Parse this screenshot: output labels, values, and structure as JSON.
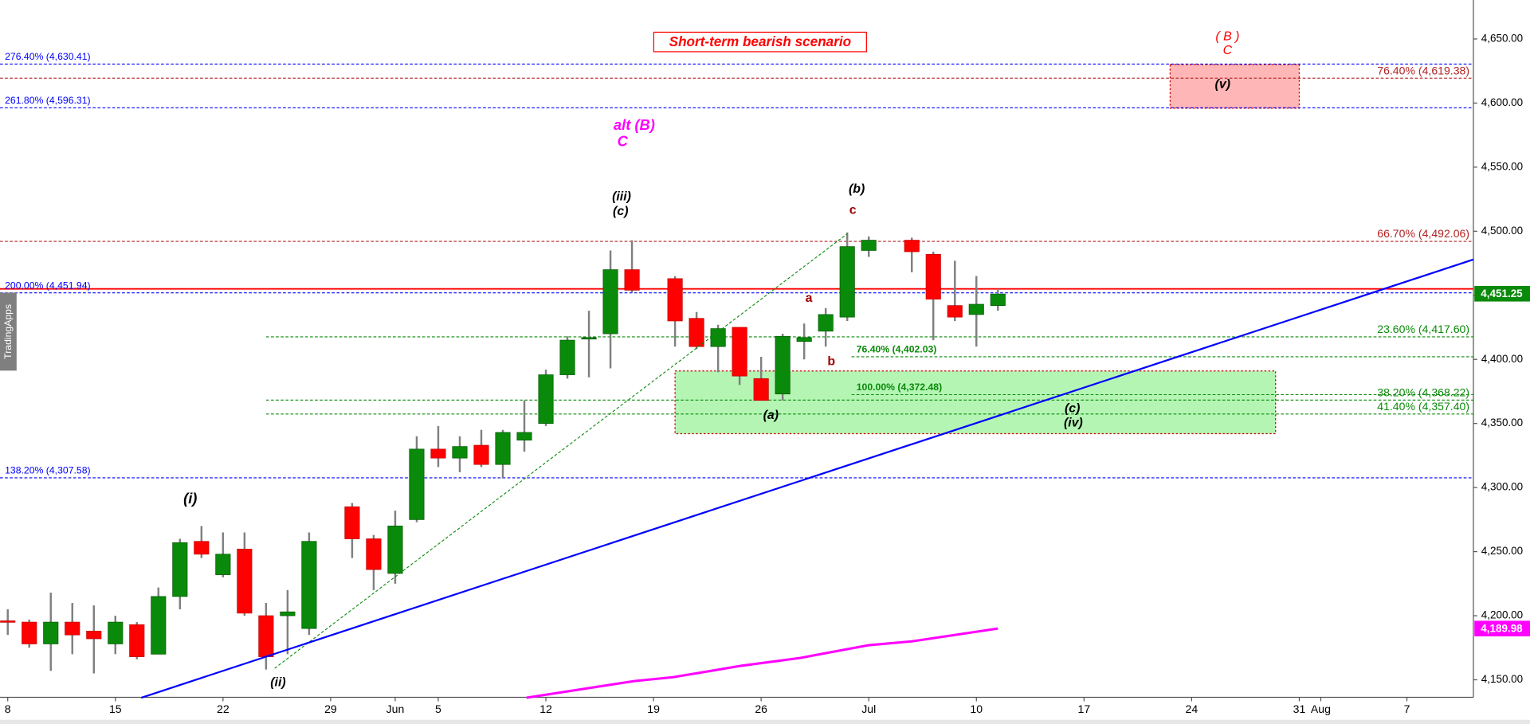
{
  "chart_data": {
    "type": "candlestick",
    "title": "Short-term bearish scenario",
    "watermark": "TradingApps",
    "up_color": "#0a8a0a",
    "down_color": "#ff0000",
    "wick_color": "#808080",
    "x": [
      0,
      1,
      2,
      3,
      4,
      5,
      6,
      7,
      8,
      9,
      10,
      11,
      12,
      13,
      14,
      16,
      17,
      18,
      19,
      20,
      21,
      22,
      23,
      24,
      25,
      26,
      27,
      28,
      29,
      31,
      32,
      33,
      34,
      35,
      36,
      37,
      38,
      39,
      40,
      42,
      43,
      44,
      45,
      46
    ],
    "open": [
      4196,
      4195,
      4178,
      4195,
      4188,
      4178,
      4193,
      4170,
      4215,
      4258,
      4232,
      4252,
      4200,
      4200,
      4190,
      4285,
      4260,
      4233,
      4275,
      4330,
      4323,
      4333,
      4318,
      4337,
      4350,
      4388,
      4416,
      4420,
      4470,
      4463,
      4432,
      4410,
      4425,
      4385,
      4373,
      4414,
      4422,
      4433,
      4485,
      4493,
      4482,
      4442,
      4435,
      4442
    ],
    "high": [
      4205,
      4197,
      4218,
      4210,
      4208,
      4200,
      4195,
      4222,
      4260,
      4270,
      4265,
      4265,
      4210,
      4220,
      4265,
      4288,
      4263,
      4282,
      4340,
      4348,
      4340,
      4345,
      4345,
      4368,
      4392,
      4418,
      4438,
      4485,
      4493,
      4465,
      4437,
      4427,
      4425,
      4402,
      4420,
      4428,
      4440,
      4499,
      4496,
      4495,
      4484,
      4477,
      4465,
      4455
    ],
    "low": [
      4185,
      4175,
      4157,
      4170,
      4155,
      4170,
      4166,
      4170,
      4205,
      4245,
      4230,
      4200,
      4158,
      4170,
      4185,
      4245,
      4220,
      4225,
      4273,
      4316,
      4312,
      4316,
      4307,
      4328,
      4348,
      4385,
      4386,
      4393,
      4452,
      4410,
      4408,
      4390,
      4380,
      4368,
      4368,
      4400,
      4410,
      4430,
      4480,
      4468,
      4415,
      4430,
      4410,
      4438
    ],
    "close": [
      4195,
      4178,
      4195,
      4185,
      4182,
      4195,
      4168,
      4215,
      4257,
      4248,
      4248,
      4202,
      4168,
      4203,
      4258,
      4260,
      4236,
      4270,
      4330,
      4323,
      4332,
      4318,
      4343,
      4343,
      4388,
      4415,
      4417,
      4470,
      4454,
      4430,
      4410,
      4424,
      4387,
      4368,
      4418,
      4417,
      4435,
      4488,
      4493,
      4484,
      4447,
      4433,
      4443,
      4451
    ],
    "moving_average": {
      "color": "#ff00ff",
      "x": [
        24.1,
        29.1,
        30.9,
        34.1,
        36.8,
        40,
        42,
        46
      ],
      "values": [
        4136,
        4149,
        4152,
        4161,
        4167,
        4177,
        4180,
        4190
      ],
      "value_label": "4,189.98",
      "last_value": 4189.98
    },
    "last_price": {
      "value": 4451.25,
      "label": "4,451.25",
      "color": "#0a8a0a"
    },
    "trendline": {
      "color": "#0000ff",
      "x": [
        6.2,
        68.1
      ],
      "values": [
        4136,
        4478
      ]
    },
    "dotted_line": {
      "color": "#0a8a0a",
      "x": [
        12.4,
        39
      ],
      "values": [
        4159,
        4498
      ]
    },
    "levels": [
      {
        "label": "276.40% (4,630.41)",
        "value": 4630.41,
        "color": "#0000ff",
        "style": "dashed",
        "from": -0.36,
        "anchor": "start"
      },
      {
        "label": "76.40% (4,619.38)",
        "value": 4619.38,
        "color": "#b22222",
        "style": "dashed",
        "from": -0.36,
        "anchor": "end"
      },
      {
        "label": "261.80% (4,596.31)",
        "value": 4596.31,
        "color": "#0000ff",
        "style": "dashed",
        "from": -0.36,
        "anchor": "start"
      },
      {
        "label": "66.70% (4,492.06)",
        "value": 4492.06,
        "color": "#b22222",
        "style": "dashed",
        "from": -0.36,
        "anchor": "end"
      },
      {
        "label": "200.00% (4,451.94)",
        "value": 4451.94,
        "color": "#0000ff",
        "style": "dashed",
        "from": -0.36,
        "anchor": "start"
      },
      {
        "label": "23.60% (4,417.60)",
        "value": 4417.6,
        "color": "#0a8a0a",
        "style": "dashed",
        "from": 12,
        "anchor": "end"
      },
      {
        "label": "76.40% (4,402.03)",
        "value": 4402.03,
        "color": "#0a8a0a",
        "style": "dashed",
        "from": 39.2,
        "anchor": "start"
      },
      {
        "label": "100.00% (4,372.48)",
        "value": 4372.48,
        "color": "#0a8a0a",
        "style": "dashed",
        "from": 39.2,
        "anchor": "start"
      },
      {
        "label": "38.20% (4,368.22)",
        "value": 4368.22,
        "color": "#0a8a0a",
        "style": "dashed",
        "from": 12,
        "anchor": "end"
      },
      {
        "label": "41.40% (4,357.40)",
        "value": 4357.4,
        "color": "#0a8a0a",
        "style": "dashed",
        "from": 12,
        "anchor": "end"
      },
      {
        "label": "138.20% (4,307.58)",
        "value": 4307.58,
        "color": "#0000ff",
        "style": "dashed",
        "from": -0.36,
        "anchor": "start"
      }
    ],
    "resistance": {
      "value": 4455,
      "color": "#ff0000"
    },
    "zones": [
      {
        "x": [
          54,
          60
        ],
        "values": [
          4596,
          4630
        ],
        "color": "#ffb6b6",
        "border": "#cc0000"
      },
      {
        "x": [
          31,
          58.9
        ],
        "values": [
          4342,
          4391
        ],
        "color": "#b4f5b4",
        "border": "#cc0000"
      }
    ],
    "annotations": [
      "( B )",
      "C",
      "(v)",
      "alt (B)",
      "C",
      "(iii)",
      "(c)",
      "(b)",
      "c",
      "a",
      "b",
      "(a)",
      "(c)",
      "(iv)",
      "(i)",
      "(ii)"
    ],
    "xlim": [
      -0.36,
      68.09
    ],
    "xticks": [
      {
        "value": 0,
        "label": "8"
      },
      {
        "value": 5,
        "label": "15"
      },
      {
        "value": 10,
        "label": "22"
      },
      {
        "value": 15,
        "label": "29"
      },
      {
        "value": 18,
        "label": "Jun"
      },
      {
        "value": 20,
        "label": "5"
      },
      {
        "value": 25,
        "label": "12"
      },
      {
        "value": 30,
        "label": "19"
      },
      {
        "value": 35,
        "label": "26"
      },
      {
        "value": 40,
        "label": "Jul"
      },
      {
        "value": 45,
        "label": "10"
      },
      {
        "value": 50,
        "label": "17"
      },
      {
        "value": 55,
        "label": "24"
      },
      {
        "value": 60,
        "label": "31"
      },
      {
        "value": 61,
        "label": "Aug"
      },
      {
        "value": 65,
        "label": "7"
      }
    ],
    "ylim": [
      4136.3,
      4680.4
    ],
    "yticks": [
      {
        "value": 4150,
        "label": "4,150.00"
      },
      {
        "value": 4200,
        "label": "4,200.00"
      },
      {
        "value": 4250,
        "label": "4,250.00"
      },
      {
        "value": 4300,
        "label": "4,300.00"
      },
      {
        "value": 4350,
        "label": "4,350.00"
      },
      {
        "value": 4400,
        "label": "4,400.00"
      },
      {
        "value": 4450,
        "label": "4,450.00"
      },
      {
        "value": 4500,
        "label": "4,500.00"
      },
      {
        "value": 4550,
        "label": "4,550.00"
      },
      {
        "value": 4600,
        "label": "4,600.00"
      },
      {
        "value": 4650,
        "label": "4,650.00"
      }
    ]
  }
}
